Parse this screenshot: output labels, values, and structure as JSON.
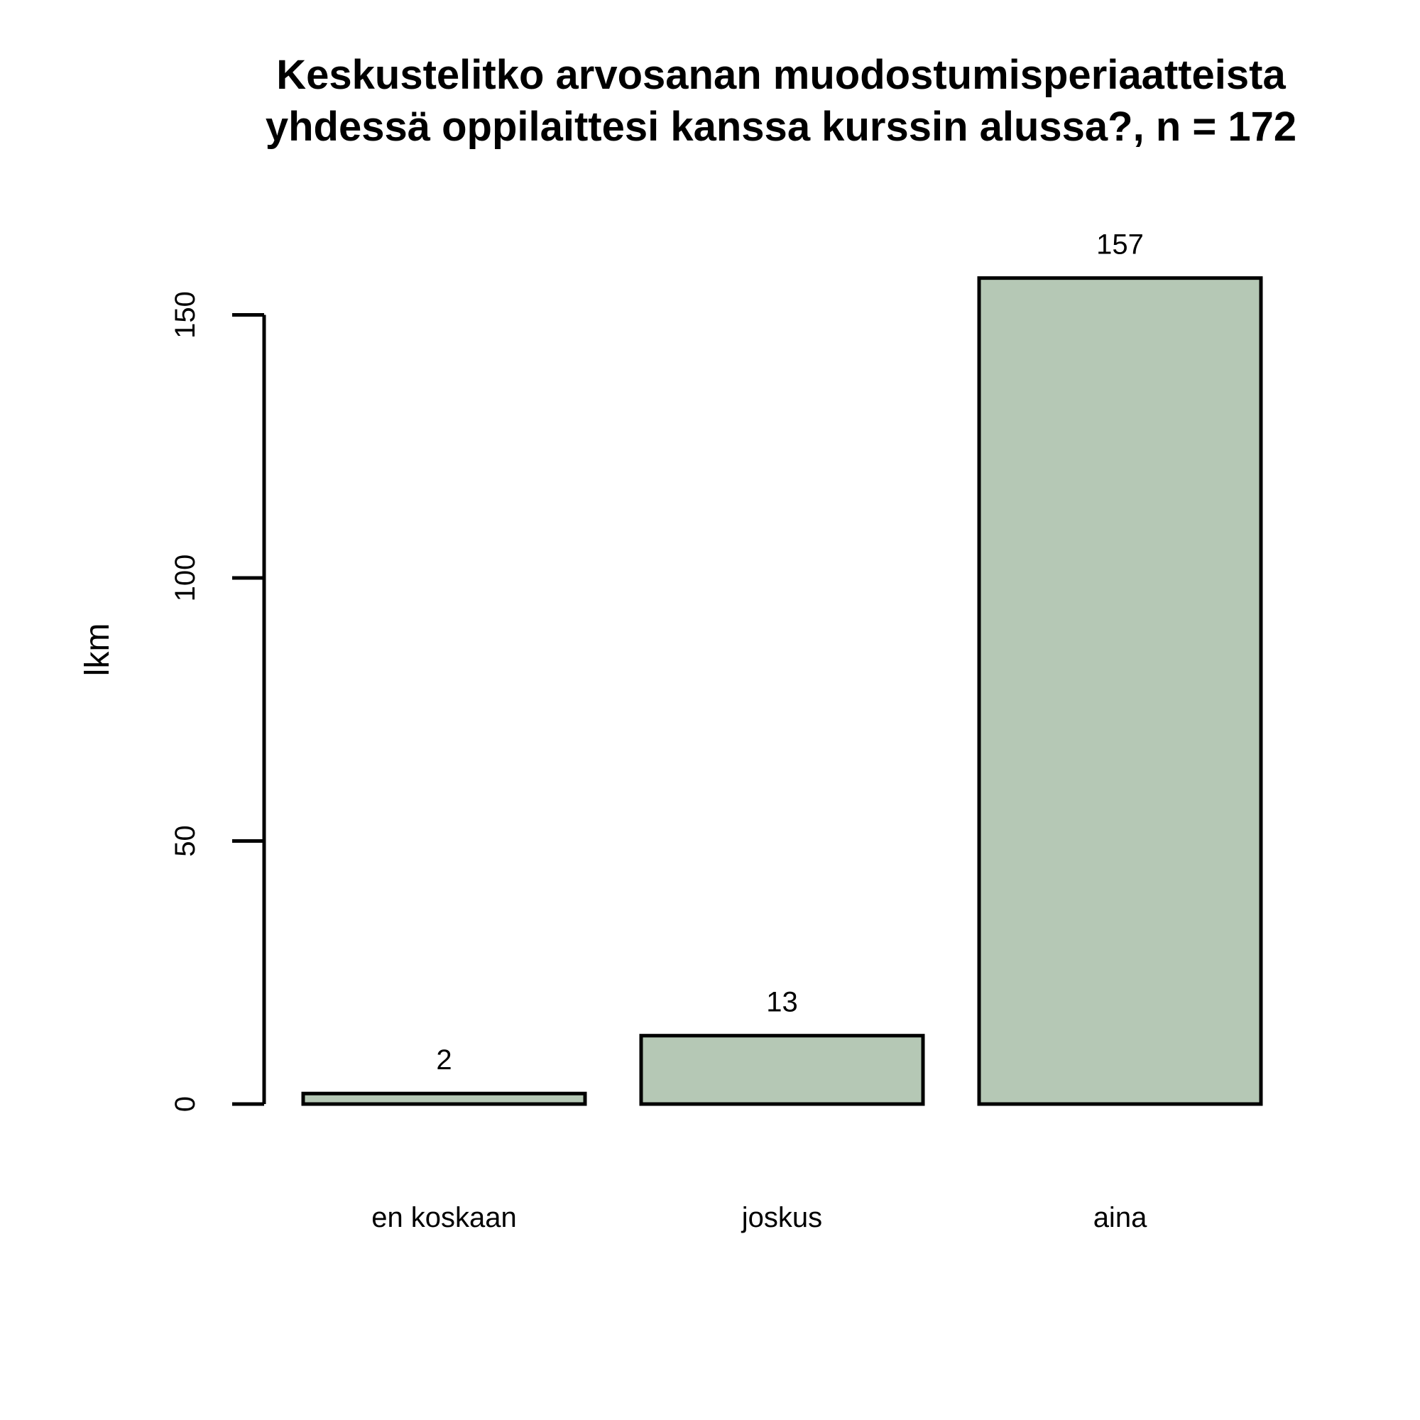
{
  "chart_data": {
    "type": "bar",
    "title": [
      "Keskustelitko arvosanan muodostumisperiaatteista",
      "yhdessä oppilaittesi kanssa kurssin alussa?, n = 172"
    ],
    "xlabel": "",
    "ylabel": "lkm",
    "categories": [
      "en koskaan",
      "joskus",
      "aina"
    ],
    "values": [
      2,
      13,
      157
    ],
    "data_labels": [
      "2",
      "13",
      "157"
    ],
    "yticks": [
      0,
      50,
      100,
      150
    ],
    "ytick_labels": [
      "0",
      "50",
      "100",
      "150"
    ],
    "ylim": [
      0,
      157
    ],
    "grid": false,
    "legend": "none",
    "bar_color": "#b5c8b5",
    "edge_color": "#000000"
  }
}
